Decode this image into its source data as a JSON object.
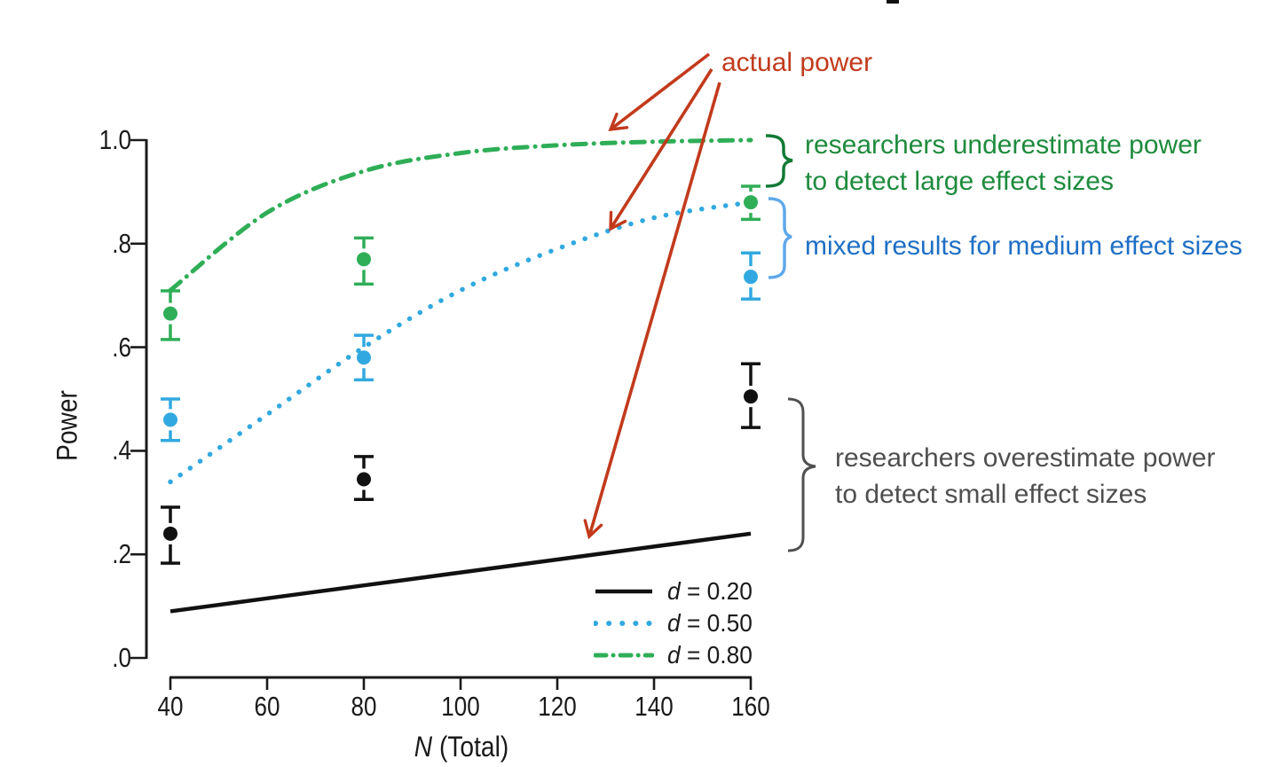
{
  "colors": {
    "axis": "#1a1a1a",
    "red": "#c23a1c",
    "green-curve": "#2fae57",
    "green-text": "#1e8b3d",
    "green-brace": "#127a35",
    "blue-curve": "#31a9e0",
    "blue-text": "#1e6fc5",
    "blue-brace": "#5fa8ea",
    "gray": "#4f4f4f",
    "black-curve": "#111111"
  },
  "axes": {
    "y_label": "Power",
    "x_label_var": "N",
    "x_label_rest": " (Total)",
    "y_ticks": [
      {
        "label": "1.0",
        "value": 1.0
      },
      {
        "label": ".8",
        "value": 0.8
      },
      {
        "label": ".6",
        "value": 0.6
      },
      {
        "label": ".4",
        "value": 0.4
      },
      {
        "label": ".2",
        "value": 0.2
      },
      {
        "label": ".0",
        "value": 0.0
      }
    ],
    "x_ticks": [
      {
        "label": "40",
        "value": 40
      },
      {
        "label": "60",
        "value": 60
      },
      {
        "label": "80",
        "value": 80
      },
      {
        "label": "100",
        "value": 100
      },
      {
        "label": "120",
        "value": 120
      },
      {
        "label": "140",
        "value": 140
      },
      {
        "label": "160",
        "value": 160
      }
    ]
  },
  "legend": [
    {
      "var": "d",
      "rest": " = 0.20",
      "pattern": "solid",
      "color": "#111111"
    },
    {
      "var": "d",
      "rest": " = 0.50",
      "pattern": "dotted",
      "color": "#31a9e0"
    },
    {
      "var": "d",
      "rest": " = 0.80",
      "pattern": "dashdot",
      "color": "#2fae57"
    }
  ],
  "annotations": {
    "actual_power": "actual power",
    "large_effect": {
      "line1": "researchers underestimate power",
      "line2": "to detect large effect sizes"
    },
    "medium_effect": {
      "line1": "mixed results for medium effect sizes"
    },
    "small_effect": {
      "line1": "researchers overestimate power",
      "line2": "to detect small effect sizes"
    }
  },
  "chart_data": {
    "type": "line",
    "title": "",
    "xlabel": "N (Total)",
    "ylabel": "Power",
    "xlim": [
      40,
      160
    ],
    "ylim": [
      0.0,
      1.0
    ],
    "x_tick_values": [
      40,
      60,
      80,
      100,
      120,
      140,
      160
    ],
    "y_tick_values": [
      0.0,
      0.2,
      0.4,
      0.6,
      0.8,
      1.0
    ],
    "grid": false,
    "legend_position": "lower right",
    "curves": [
      {
        "name": "actual power, d = 0.20",
        "style": "solid",
        "color": "#111111",
        "width": 4.5,
        "x": [
          40,
          60,
          80,
          100,
          120,
          140,
          160
        ],
        "y": [
          0.09,
          0.115,
          0.14,
          0.165,
          0.19,
          0.215,
          0.24
        ]
      },
      {
        "name": "actual power, d = 0.50",
        "style": "dotted",
        "color": "#31a9e0",
        "width": 5.5,
        "x": [
          40,
          60,
          80,
          100,
          120,
          140,
          160
        ],
        "y": [
          0.34,
          0.47,
          0.6,
          0.71,
          0.79,
          0.85,
          0.88
        ]
      },
      {
        "name": "actual power, d = 0.80",
        "style": "dashdot",
        "color": "#2fae57",
        "width": 5,
        "x": [
          40,
          60,
          80,
          100,
          120,
          140,
          160
        ],
        "y": [
          0.71,
          0.86,
          0.94,
          0.975,
          0.99,
          0.997,
          1.0
        ]
      }
    ],
    "points": [
      {
        "name": "researcher estimates, d = 0.20",
        "color": "#111111",
        "x": [
          40,
          80,
          160
        ],
        "y": [
          0.24,
          0.345,
          0.505
        ],
        "err_low": [
          0.183,
          0.306,
          0.445
        ],
        "err_high": [
          0.291,
          0.389,
          0.568
        ]
      },
      {
        "name": "researcher estimates, d = 0.50",
        "color": "#31a9e0",
        "x": [
          40,
          80,
          160
        ],
        "y": [
          0.46,
          0.58,
          0.736
        ],
        "err_low": [
          0.42,
          0.537,
          0.693
        ],
        "err_high": [
          0.5,
          0.623,
          0.782
        ]
      },
      {
        "name": "researcher estimates, d = 0.80",
        "color": "#2fae57",
        "x": [
          40,
          80,
          160
        ],
        "y": [
          0.665,
          0.77,
          0.88
        ],
        "err_low": [
          0.615,
          0.722,
          0.847
        ],
        "err_high": [
          0.709,
          0.811,
          0.911
        ]
      }
    ]
  }
}
